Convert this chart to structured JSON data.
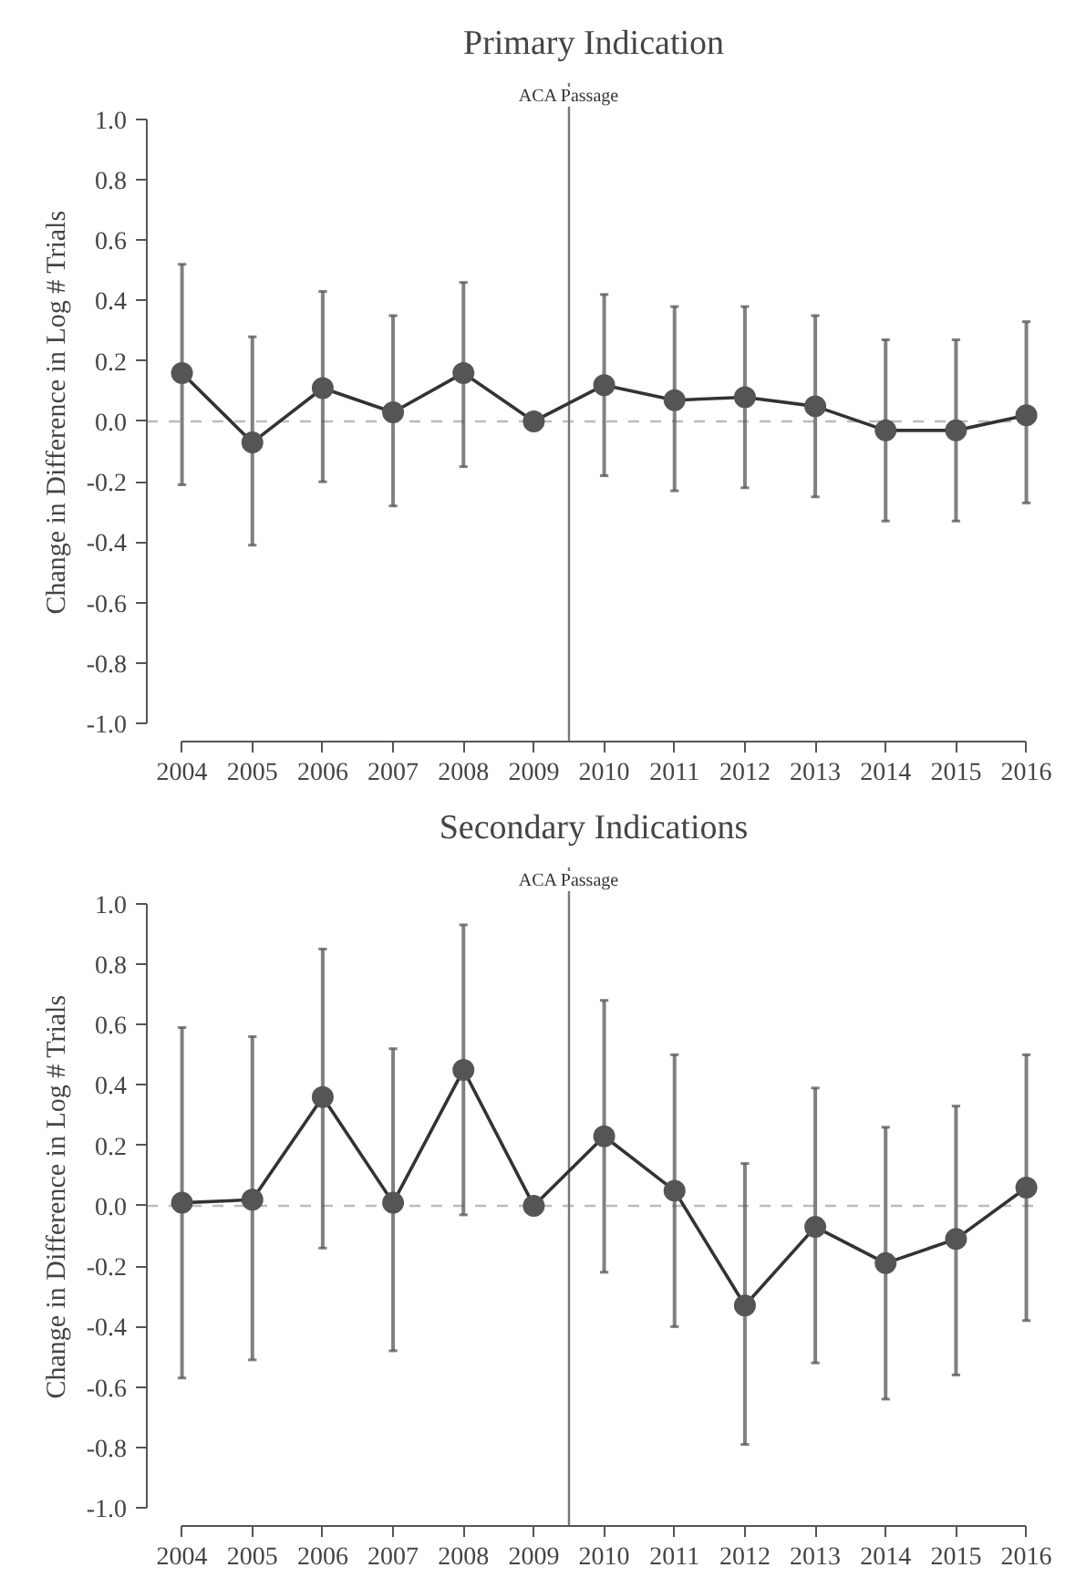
{
  "chart_data": [
    {
      "type": "line",
      "title": "Primary Indication",
      "ylabel": "Change in Difference in Log # Trials",
      "x": [
        2004,
        2005,
        2006,
        2007,
        2008,
        2009,
        2010,
        2011,
        2012,
        2013,
        2014,
        2015,
        2016
      ],
      "series": [
        {
          "color": "#555555",
          "values": [
            0.16,
            -0.07,
            0.11,
            0.03,
            0.16,
            0.0,
            0.12,
            0.07,
            0.08,
            0.05,
            -0.03,
            -0.03,
            0.02
          ],
          "errors": [
            [
              -0.21,
              0.52
            ],
            [
              -0.41,
              0.28
            ],
            [
              -0.2,
              0.43
            ],
            [
              -0.28,
              0.35
            ],
            [
              -0.15,
              0.46
            ],
            null,
            [
              -0.18,
              0.42
            ],
            [
              -0.23,
              0.38
            ],
            [
              -0.22,
              0.38
            ],
            [
              -0.25,
              0.35
            ],
            [
              -0.33,
              0.27
            ],
            [
              -0.33,
              0.27
            ],
            [
              -0.27,
              0.33
            ]
          ]
        }
      ],
      "marker": "circle",
      "line_style": "solid",
      "grid": false,
      "xlim": [
        2003.5,
        2016.2
      ],
      "ylim": [
        -1.06,
        1.12
      ],
      "xticks": [
        2004,
        2005,
        2006,
        2007,
        2008,
        2009,
        2010,
        2011,
        2012,
        2013,
        2014,
        2015,
        2016
      ],
      "yticks": [
        {
          "value": -1,
          "label": "-1.0"
        },
        {
          "value": -0.8,
          "label": "-0.8"
        },
        {
          "value": -0.6,
          "label": "-0.6"
        },
        {
          "value": -0.4,
          "label": "-0.4"
        },
        {
          "value": -0.2,
          "label": "-0.2"
        },
        {
          "value": 0,
          "label": "0.0"
        },
        {
          "value": 0.2,
          "label": "0.2"
        },
        {
          "value": 0.4,
          "label": "0.4"
        },
        {
          "value": 0.6,
          "label": "0.6"
        },
        {
          "value": 0.8,
          "label": "0.8"
        },
        {
          "value": 1,
          "label": "1.0"
        }
      ],
      "ref_lines": [
        {
          "axis": "y",
          "value": 0,
          "color": "#bbbbbb",
          "line_style": "dashed"
        },
        {
          "axis": "x",
          "value": 2009.5,
          "label": "ACA Passage",
          "color": "#777777",
          "line_style": "solid"
        }
      ]
    },
    {
      "type": "line",
      "title": "Secondary Indications",
      "ylabel": "Change in Difference in Log # Trials",
      "x": [
        2004,
        2005,
        2006,
        2007,
        2008,
        2009,
        2010,
        2011,
        2012,
        2013,
        2014,
        2015,
        2016
      ],
      "series": [
        {
          "color": "#555555",
          "values": [
            0.01,
            0.02,
            0.36,
            0.01,
            0.45,
            0.0,
            0.23,
            0.05,
            -0.33,
            -0.07,
            -0.19,
            -0.11,
            0.06
          ],
          "errors": [
            [
              -0.57,
              0.59
            ],
            [
              -0.51,
              0.56
            ],
            [
              -0.14,
              0.85
            ],
            [
              -0.48,
              0.52
            ],
            [
              -0.03,
              0.93
            ],
            null,
            [
              -0.22,
              0.68
            ],
            [
              -0.4,
              0.5
            ],
            [
              -0.79,
              0.14
            ],
            [
              -0.52,
              0.39
            ],
            [
              -0.64,
              0.26
            ],
            [
              -0.56,
              0.33
            ],
            [
              -0.38,
              0.5
            ]
          ]
        }
      ],
      "marker": "circle",
      "line_style": "solid",
      "grid": false,
      "xlim": [
        2003.5,
        2016.2
      ],
      "ylim": [
        -1.06,
        1.12
      ],
      "xticks": [
        2004,
        2005,
        2006,
        2007,
        2008,
        2009,
        2010,
        2011,
        2012,
        2013,
        2014,
        2015,
        2016
      ],
      "yticks": [
        {
          "value": -1,
          "label": "-1.0"
        },
        {
          "value": -0.8,
          "label": "-0.8"
        },
        {
          "value": -0.6,
          "label": "-0.6"
        },
        {
          "value": -0.4,
          "label": "-0.4"
        },
        {
          "value": -0.2,
          "label": "-0.2"
        },
        {
          "value": 0,
          "label": "0.0"
        },
        {
          "value": 0.2,
          "label": "0.2"
        },
        {
          "value": 0.4,
          "label": "0.4"
        },
        {
          "value": 0.6,
          "label": "0.6"
        },
        {
          "value": 0.8,
          "label": "0.8"
        },
        {
          "value": 1,
          "label": "1.0"
        }
      ],
      "ref_lines": [
        {
          "axis": "y",
          "value": 0,
          "color": "#bbbbbb",
          "line_style": "dashed"
        },
        {
          "axis": "x",
          "value": 2009.5,
          "label": "ACA Passage",
          "color": "#777777",
          "line_style": "solid"
        }
      ]
    }
  ]
}
